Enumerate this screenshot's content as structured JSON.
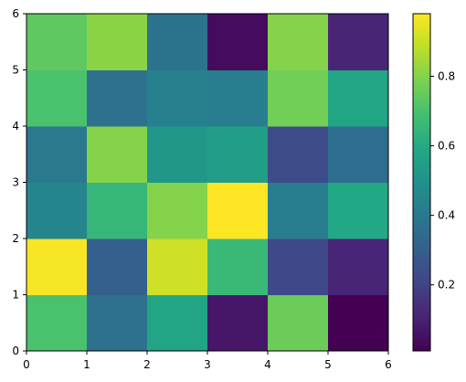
{
  "chart_data": {
    "type": "heatmap",
    "title": "",
    "xlabel": "",
    "ylabel": "",
    "colormap": "viridis",
    "xlim": [
      0,
      6
    ],
    "ylim": [
      0,
      6
    ],
    "x_ticks": [
      "0",
      "1",
      "2",
      "3",
      "4",
      "5",
      "6"
    ],
    "y_ticks": [
      "0",
      "1",
      "2",
      "3",
      "4",
      "5",
      "6"
    ],
    "grid": false,
    "value_range": [
      0.01,
      0.98
    ],
    "colorbar": {
      "placement": "right",
      "ticks": [
        "0.2",
        "0.4",
        "0.6",
        "0.8"
      ],
      "tick_values": [
        0.2,
        0.4,
        0.6,
        0.8
      ]
    },
    "rows_bottom_to_top": [
      [
        0.7,
        0.37,
        0.58,
        0.07,
        0.76,
        0.01
      ],
      [
        0.97,
        0.3,
        0.91,
        0.66,
        0.22,
        0.11
      ],
      [
        0.45,
        0.65,
        0.8,
        0.98,
        0.42,
        0.59
      ],
      [
        0.4,
        0.8,
        0.52,
        0.55,
        0.23,
        0.36
      ],
      [
        0.7,
        0.37,
        0.43,
        0.42,
        0.77,
        0.58
      ],
      [
        0.74,
        0.81,
        0.38,
        0.04,
        0.8,
        0.11
      ]
    ]
  }
}
